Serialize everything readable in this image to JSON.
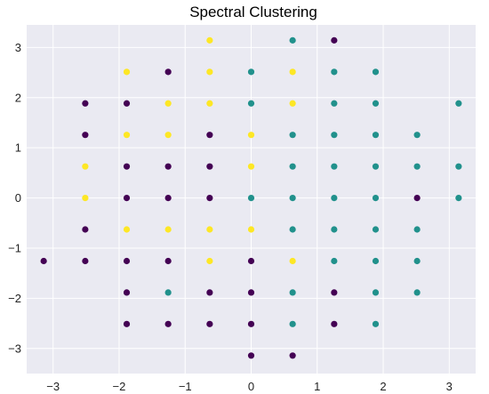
{
  "chart_data": {
    "type": "scatter",
    "title": "Spectral Clustering",
    "xlabel": "",
    "ylabel": "",
    "xlim": [
      -3.4,
      3.4
    ],
    "ylim": [
      -3.5,
      3.45
    ],
    "xticks": [
      -3,
      -2,
      -1,
      0,
      1,
      2,
      3
    ],
    "yticks": [
      -3,
      -2,
      -1,
      0,
      1,
      2,
      3
    ],
    "xtick_labels": [
      "−3",
      "−2",
      "−1",
      "0",
      "1",
      "2",
      "3"
    ],
    "ytick_labels": [
      "−3",
      "−2",
      "−1",
      "0",
      "1",
      "2",
      "3"
    ],
    "grid": true,
    "background": "#eaeaf2",
    "grid_color": "#ffffff",
    "cluster_colors": [
      "#440154",
      "#21918c",
      "#fde725"
    ],
    "points": [
      [
        -0.628,
        3.142,
        2
      ],
      [
        0.628,
        3.142,
        1
      ],
      [
        1.257,
        3.142,
        0
      ],
      [
        -1.885,
        2.513,
        2
      ],
      [
        -1.257,
        2.513,
        0
      ],
      [
        -0.628,
        2.513,
        2
      ],
      [
        0.0,
        2.513,
        1
      ],
      [
        0.628,
        2.513,
        2
      ],
      [
        1.257,
        2.513,
        1
      ],
      [
        1.885,
        2.513,
        1
      ],
      [
        -2.513,
        1.885,
        0
      ],
      [
        -1.885,
        1.885,
        0
      ],
      [
        -1.257,
        1.885,
        2
      ],
      [
        -0.628,
        1.885,
        2
      ],
      [
        0.0,
        1.885,
        1
      ],
      [
        0.628,
        1.885,
        2
      ],
      [
        1.257,
        1.885,
        1
      ],
      [
        1.885,
        1.885,
        1
      ],
      [
        3.142,
        1.885,
        1
      ],
      [
        -2.513,
        1.257,
        0
      ],
      [
        -1.885,
        1.257,
        2
      ],
      [
        -1.257,
        1.257,
        2
      ],
      [
        -0.628,
        1.257,
        0
      ],
      [
        0.0,
        1.257,
        2
      ],
      [
        0.628,
        1.257,
        1
      ],
      [
        1.257,
        1.257,
        1
      ],
      [
        1.885,
        1.257,
        1
      ],
      [
        2.513,
        1.257,
        1
      ],
      [
        -2.513,
        0.628,
        2
      ],
      [
        -1.885,
        0.628,
        0
      ],
      [
        -1.257,
        0.628,
        0
      ],
      [
        -0.628,
        0.628,
        0
      ],
      [
        0.0,
        0.628,
        2
      ],
      [
        0.628,
        0.628,
        1
      ],
      [
        1.257,
        0.628,
        1
      ],
      [
        1.885,
        0.628,
        1
      ],
      [
        2.513,
        0.628,
        1
      ],
      [
        3.142,
        0.628,
        1
      ],
      [
        -2.513,
        0.0,
        2
      ],
      [
        -1.885,
        0.0,
        0
      ],
      [
        -1.257,
        0.0,
        0
      ],
      [
        -0.628,
        0.0,
        0
      ],
      [
        0.0,
        0.0,
        1
      ],
      [
        0.628,
        0.0,
        1
      ],
      [
        1.257,
        0.0,
        1
      ],
      [
        1.885,
        0.0,
        1
      ],
      [
        2.513,
        0.0,
        0
      ],
      [
        3.142,
        0.0,
        1
      ],
      [
        -2.513,
        -0.628,
        0
      ],
      [
        -1.885,
        -0.628,
        2
      ],
      [
        -1.257,
        -0.628,
        2
      ],
      [
        -0.628,
        -0.628,
        2
      ],
      [
        0.0,
        -0.628,
        2
      ],
      [
        0.628,
        -0.628,
        1
      ],
      [
        1.257,
        -0.628,
        1
      ],
      [
        1.885,
        -0.628,
        1
      ],
      [
        2.513,
        -0.628,
        1
      ],
      [
        -3.142,
        -1.257,
        0
      ],
      [
        -2.513,
        -1.257,
        0
      ],
      [
        -1.885,
        -1.257,
        0
      ],
      [
        -1.257,
        -1.257,
        0
      ],
      [
        -0.628,
        -1.257,
        2
      ],
      [
        0.0,
        -1.257,
        0
      ],
      [
        0.628,
        -1.257,
        2
      ],
      [
        1.257,
        -1.257,
        1
      ],
      [
        1.885,
        -1.257,
        1
      ],
      [
        2.513,
        -1.257,
        1
      ],
      [
        -1.885,
        -1.885,
        0
      ],
      [
        -1.257,
        -1.885,
        1
      ],
      [
        -0.628,
        -1.885,
        0
      ],
      [
        0.0,
        -1.885,
        0
      ],
      [
        0.628,
        -1.885,
        1
      ],
      [
        1.257,
        -1.885,
        0
      ],
      [
        1.885,
        -1.885,
        1
      ],
      [
        2.513,
        -1.885,
        1
      ],
      [
        -1.885,
        -2.513,
        0
      ],
      [
        -1.257,
        -2.513,
        0
      ],
      [
        -0.628,
        -2.513,
        0
      ],
      [
        0.0,
        -2.513,
        0
      ],
      [
        0.628,
        -2.513,
        1
      ],
      [
        1.257,
        -2.513,
        0
      ],
      [
        1.885,
        -2.513,
        1
      ],
      [
        0.0,
        -3.142,
        0
      ],
      [
        0.628,
        -3.142,
        0
      ]
    ]
  }
}
